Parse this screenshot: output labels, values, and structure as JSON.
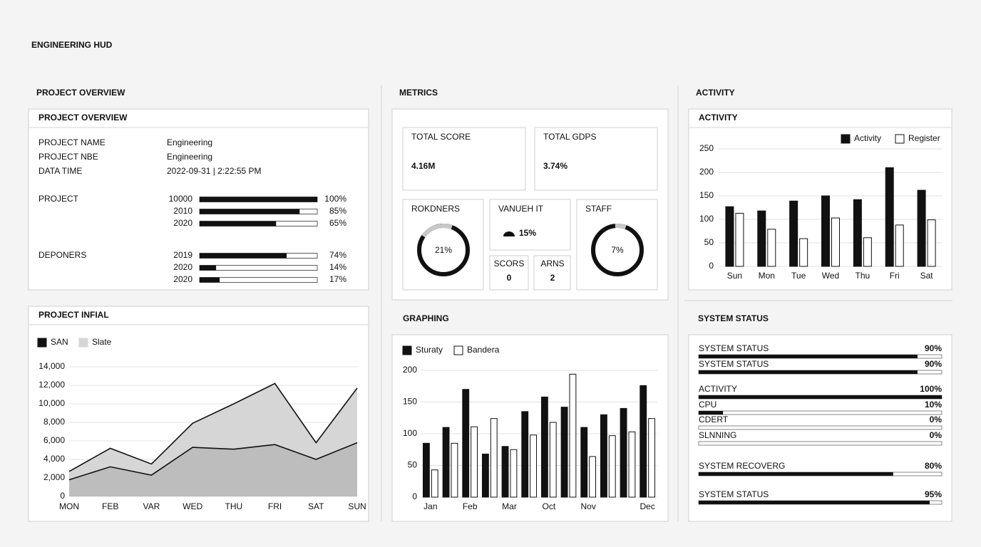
{
  "title": "ENGINEERING HUD",
  "sections": {
    "overview": "PROJECT OVERVIEW",
    "metrics": "METRICS",
    "activity": "ACTIVITY",
    "graphing": "GRAPHING",
    "system": "SYSTEM STATUS"
  },
  "overview": {
    "title": "PROJECT OVERVIEW",
    "info": [
      {
        "label": "PROJECT NAME",
        "value": "Engineering"
      },
      {
        "label": "PROJECT NBE",
        "value": "Engineering"
      },
      {
        "label": "DATA TIME",
        "value": "2022-09-31 | 2:22:55 PM"
      }
    ],
    "groups": [
      {
        "label": "PROJECT",
        "rows": [
          {
            "name": "10000",
            "value": 100,
            "label": "100%"
          },
          {
            "name": "2010",
            "value": 85,
            "label": "85%"
          },
          {
            "name": "2020",
            "value": 65,
            "label": "65%"
          }
        ]
      },
      {
        "label": "DEPONERS",
        "rows": [
          {
            "name": "2019",
            "value": 74,
            "label": "74%"
          },
          {
            "name": "2020",
            "value": 14,
            "label": "14%"
          },
          {
            "name": "2020",
            "value": 17,
            "label": "17%"
          }
        ]
      }
    ]
  },
  "metrics": {
    "cards": [
      {
        "label": "TOTAL SCORE",
        "value": "4.16M"
      },
      {
        "label": "TOTAL GDPS",
        "value": "3.74%"
      }
    ],
    "donuts": [
      {
        "label": "ROKDNERS",
        "value": 21,
        "value_label": "21%"
      },
      {
        "label": "STAFF",
        "value": 7,
        "value_label": "7%"
      }
    ],
    "kpi": {
      "label": "VANUEH IT",
      "value": "15%"
    },
    "small": [
      {
        "label": "SCORS",
        "value": 0
      },
      {
        "label": "ARNS",
        "value": 2
      }
    ]
  },
  "chart_data": [
    {
      "type": "area",
      "title": "PROJECT INFIAL",
      "categories": [
        "MON",
        "FEB",
        "VAR",
        "WED",
        "THU",
        "FRI",
        "SAT",
        "SUN"
      ],
      "series": [
        {
          "name": "Slate",
          "color": "#d6d6d6",
          "values": [
            2700,
            5200,
            3500,
            7900,
            10000,
            12200,
            5800,
            11700
          ]
        },
        {
          "name": "SAN",
          "color": "#111111",
          "fill": "#bdbdbd",
          "values": [
            1800,
            3200,
            2300,
            5300,
            5100,
            5600,
            4000,
            5800
          ]
        }
      ],
      "ylim": [
        0,
        14000
      ],
      "yticks": [
        0,
        {
          "value": 2000,
          "label": "2,000"
        },
        {
          "value": 4000,
          "label": "4,000"
        },
        {
          "value": 6000,
          "label": "6,000"
        },
        {
          "value": 8000,
          "label": "8,000"
        },
        {
          "value": 10000,
          "label": "10,000"
        },
        {
          "value": 12000,
          "label": "12,000"
        },
        {
          "value": 14000,
          "label": "14,000"
        }
      ],
      "grid": true
    },
    {
      "type": "bar",
      "categories": [
        "Jan",
        null,
        "Feb",
        null,
        "Mar",
        null,
        "Oct",
        null,
        "Nov",
        null,
        null,
        "Dec"
      ],
      "series": [
        {
          "name": "Sturaty",
          "color": "#111111",
          "values": [
            85,
            110,
            170,
            68,
            80,
            135,
            158,
            142,
            110,
            130,
            140,
            176
          ]
        },
        {
          "name": "Bandera",
          "color": "#ffffff",
          "values": [
            43,
            85,
            111,
            124,
            75,
            98,
            118,
            194,
            64,
            97,
            103,
            124
          ]
        }
      ],
      "ylim": [
        0,
        200
      ],
      "yticks": [
        0,
        50,
        100,
        150,
        200
      ],
      "grid": true
    },
    {
      "type": "bar",
      "title": "ACTIVITY",
      "categories": [
        "Sun",
        "Mon",
        "Tue",
        "Wed",
        "Thu",
        "Fri",
        "Sat"
      ],
      "series": [
        {
          "name": "Activity",
          "color": "#111111",
          "values": [
            127,
            118,
            139,
            150,
            142,
            210,
            162
          ]
        },
        {
          "name": "Register",
          "color": "#ffffff",
          "values": [
            113,
            79,
            59,
            103,
            61,
            88,
            99
          ]
        }
      ],
      "ylim": [
        0,
        250
      ],
      "yticks": [
        0,
        50,
        100,
        150,
        200,
        250
      ],
      "grid": true
    }
  ],
  "system_status": {
    "rows": [
      {
        "name": "SYSTEM STATUS",
        "value": 90,
        "label": "90%"
      },
      {
        "name": "SYSTEM STATUS",
        "value": 90,
        "label": "90%"
      },
      {
        "name": "ACTIVITY",
        "value": 100,
        "label": "100%"
      },
      {
        "name": "CPU",
        "value": 10,
        "label": "10%"
      },
      {
        "name": "CDERT",
        "value": 0,
        "label": "0%"
      },
      {
        "name": "SLNNING",
        "value": 0,
        "label": "0%"
      },
      {
        "name": "SYSTEM RECOVERG",
        "value": 80,
        "label": "80%"
      },
      {
        "name": "SYSTEM STATUS",
        "value": 95,
        "label": "95%"
      }
    ]
  }
}
